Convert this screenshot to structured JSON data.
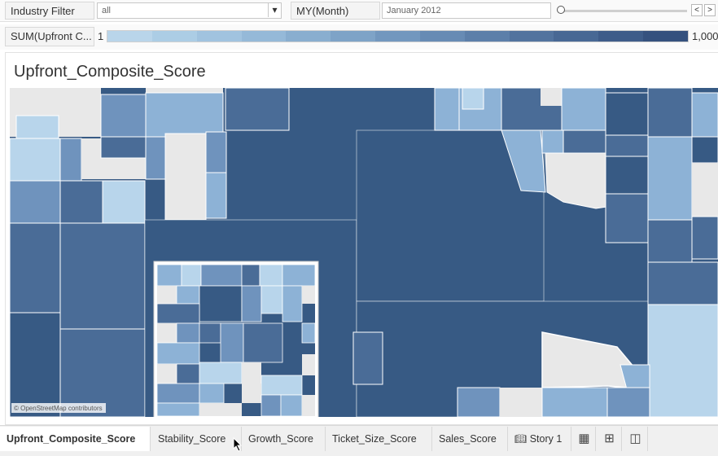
{
  "filters": {
    "industry_label": "Industry Filter",
    "industry_value": "all",
    "month_label": "MY(Month)",
    "month_value": "January 2012",
    "prev_symbol": "<",
    "next_symbol": ">",
    "dropdown_symbol": "▾"
  },
  "legend": {
    "label": "SUM(Upfront C...",
    "min": "1",
    "max": "1,000",
    "ramp_colors": [
      "#b9d5ea",
      "#accde5",
      "#a1c3df",
      "#95b9d8",
      "#89aecf",
      "#7ea3c7",
      "#7297be",
      "#678bb4",
      "#5c7fa9",
      "#52739e",
      "#486894",
      "#3e5c89",
      "#35517e"
    ]
  },
  "map": {
    "title": "Upfront_Composite_Score",
    "attribution": "© OpenStreetMap contributors",
    "colors": {
      "dark": "#375a84",
      "mid_dark": "#4a6c97",
      "mid": "#6f93bd",
      "light_mid": "#8db2d6",
      "light": "#b8d5eb",
      "empty": "#e8e8e8"
    }
  },
  "tabs": [
    {
      "label": "Upfront_Composite_Score"
    },
    {
      "label": "Stability_Score"
    },
    {
      "label": "Growth_Score"
    },
    {
      "label": "Ticket_Size_Score"
    },
    {
      "label": "Sales_Score"
    },
    {
      "label": "Story 1",
      "icon": "book-icon"
    }
  ],
  "tab_actions": [
    {
      "icon": "new-worksheet-icon"
    },
    {
      "icon": "new-dashboard-icon"
    },
    {
      "icon": "new-story-icon"
    }
  ]
}
